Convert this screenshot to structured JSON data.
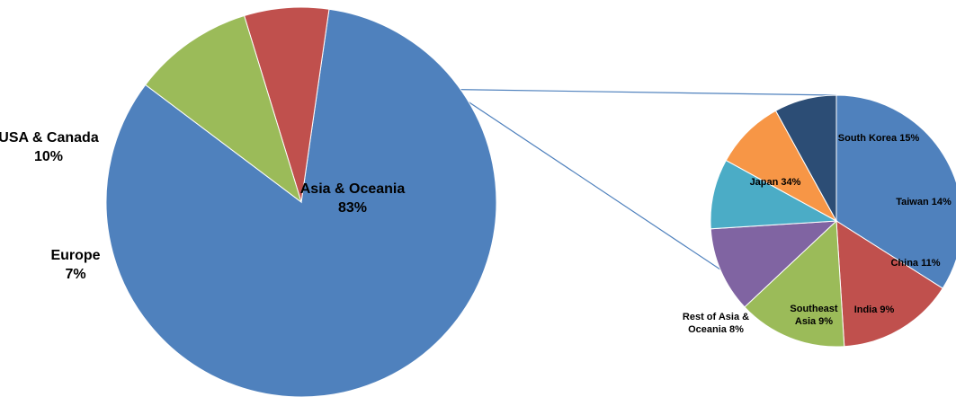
{
  "chart_data": [
    {
      "type": "pie",
      "slices": [
        {
          "name": "Asia & Oceania",
          "value": 83,
          "label_lines": [
            "Asia & Oceania",
            "83%"
          ],
          "color": "#4F81BD"
        },
        {
          "name": "Europe",
          "value": 7,
          "label_lines": [
            "Europe",
            "7%"
          ],
          "color": "#C0504D"
        },
        {
          "name": "USA & Canada",
          "value": 10,
          "label_lines": [
            "USA & Canada",
            "10%"
          ],
          "color": "#9BBB59"
        }
      ]
    },
    {
      "type": "pie",
      "slices": [
        {
          "name": "Japan",
          "value": 34,
          "label_lines": [
            "Japan 34%"
          ],
          "color": "#4F81BD"
        },
        {
          "name": "South Korea",
          "value": 15,
          "label_lines": [
            "South Korea 15%"
          ],
          "color": "#C0504D"
        },
        {
          "name": "Taiwan",
          "value": 14,
          "label_lines": [
            "Taiwan 14%"
          ],
          "color": "#9BBB59"
        },
        {
          "name": "China",
          "value": 11,
          "label_lines": [
            "China 11%"
          ],
          "color": "#8064A2"
        },
        {
          "name": "India",
          "value": 9,
          "label_lines": [
            "India 9%"
          ],
          "color": "#4BACC6"
        },
        {
          "name": "Southeast Asia",
          "value": 9,
          "label_lines": [
            "Southeast",
            "Asia 9%"
          ],
          "color": "#F79646"
        },
        {
          "name": "Rest of Asia & Oceania",
          "value": 8,
          "label_lines": [
            "Rest of Asia &",
            "Oceania 8%"
          ],
          "color": "#2C4D75"
        }
      ]
    }
  ],
  "colors": {
    "connector": "#4F81BD",
    "slice_border": "#ffffff"
  }
}
